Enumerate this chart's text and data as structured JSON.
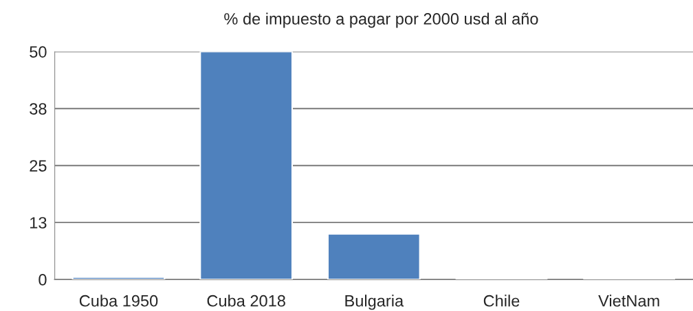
{
  "chart_data": {
    "type": "bar",
    "title": "% de impuesto a pagar por 2000 usd al año",
    "categories": [
      "Cuba 1950",
      "Cuba 2018",
      "Bulgaria",
      "Chile",
      "VietNam"
    ],
    "values": [
      0.5,
      50,
      10,
      0,
      0
    ],
    "color": "#4f81bd",
    "ylim": [
      0,
      50
    ],
    "yticks": [
      0,
      {
        "value": 12.5,
        "label": "13"
      },
      25,
      {
        "value": 37.5,
        "label": "38"
      },
      50
    ],
    "grid": "y"
  }
}
